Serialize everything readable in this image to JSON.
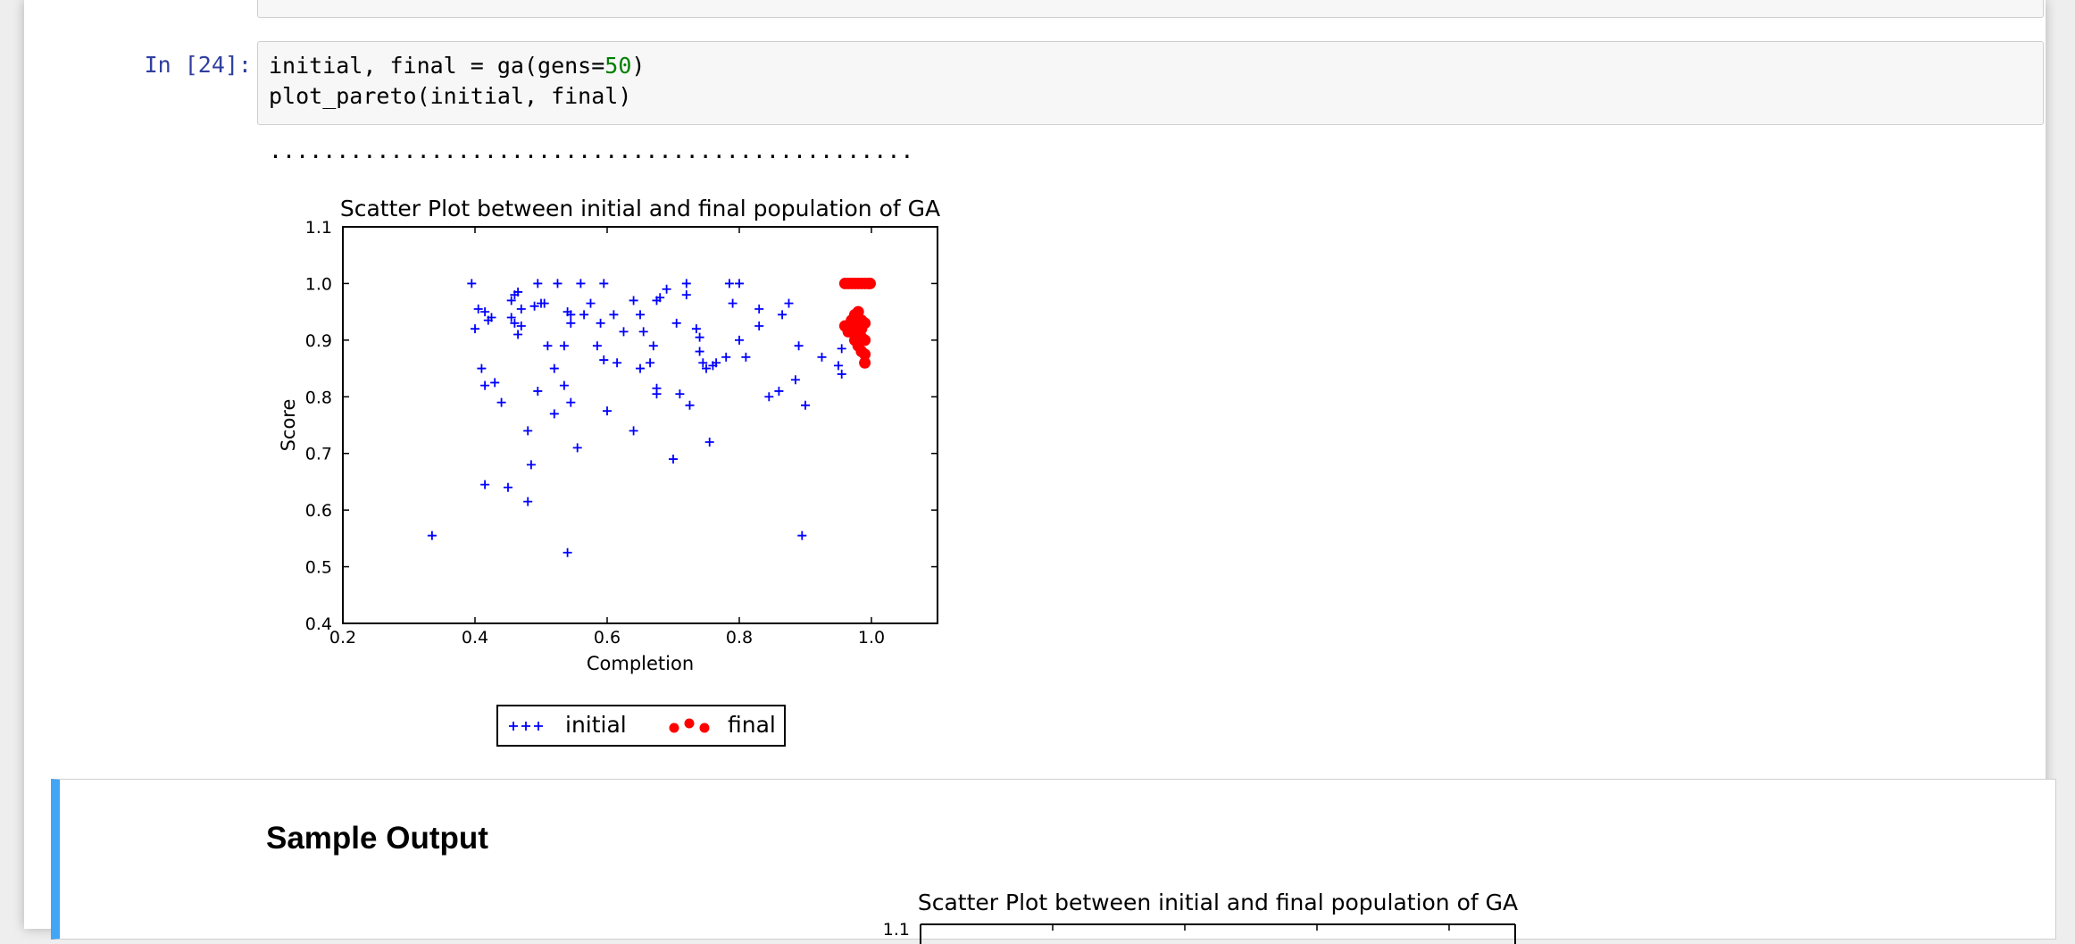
{
  "cell": {
    "prompt": "In [24]:",
    "code_line1_a": "initial, final = ga(gens=",
    "code_line1_num": "50",
    "code_line1_b": ")",
    "code_line2": "plot_pareto(initial, final)",
    "progress_output": "................................................"
  },
  "markdown": {
    "heading": "Sample Output"
  },
  "chart_data": [
    {
      "type": "scatter",
      "title": "Scatter Plot between initial and final population of GA",
      "xlabel": "Completion",
      "ylabel": "Score",
      "xlim": [
        0.2,
        1.1
      ],
      "ylim": [
        0.4,
        1.1
      ],
      "xticks": [
        "0.2",
        "0.4",
        "0.6",
        "0.8",
        "1.0"
      ],
      "yticks": [
        "0.4",
        "0.5",
        "0.6",
        "0.7",
        "0.8",
        "0.9",
        "1.0",
        "1.1"
      ],
      "grid": false,
      "legend_placement": "below",
      "series": [
        {
          "name": "initial",
          "marker": "plus",
          "color": "#0000ff",
          "points": [
            [
              0.395,
              1.0
            ],
            [
              0.4,
              0.92
            ],
            [
              0.405,
              0.955
            ],
            [
              0.415,
              0.95
            ],
            [
              0.42,
              0.935
            ],
            [
              0.425,
              0.94
            ],
            [
              0.41,
              0.85
            ],
            [
              0.415,
              0.82
            ],
            [
              0.43,
              0.825
            ],
            [
              0.44,
              0.79
            ],
            [
              0.415,
              0.645
            ],
            [
              0.45,
              0.64
            ],
            [
              0.455,
              0.97
            ],
            [
              0.46,
              0.98
            ],
            [
              0.465,
              0.985
            ],
            [
              0.455,
              0.94
            ],
            [
              0.46,
              0.93
            ],
            [
              0.465,
              0.91
            ],
            [
              0.47,
              0.925
            ],
            [
              0.47,
              0.955
            ],
            [
              0.48,
              0.74
            ],
            [
              0.485,
              0.68
            ],
            [
              0.48,
              0.615
            ],
            [
              0.49,
              0.96
            ],
            [
              0.495,
              1.0
            ],
            [
              0.495,
              0.81
            ],
            [
              0.5,
              0.965
            ],
            [
              0.505,
              0.965
            ],
            [
              0.51,
              0.89
            ],
            [
              0.52,
              0.85
            ],
            [
              0.52,
              0.77
            ],
            [
              0.525,
              1.0
            ],
            [
              0.535,
              0.89
            ],
            [
              0.535,
              0.82
            ],
            [
              0.54,
              0.95
            ],
            [
              0.545,
              0.945
            ],
            [
              0.545,
              0.93
            ],
            [
              0.545,
              0.79
            ],
            [
              0.555,
              0.71
            ],
            [
              0.56,
              1.0
            ],
            [
              0.565,
              0.945
            ],
            [
              0.575,
              0.965
            ],
            [
              0.585,
              0.89
            ],
            [
              0.59,
              0.93
            ],
            [
              0.595,
              1.0
            ],
            [
              0.595,
              0.865
            ],
            [
              0.6,
              0.775
            ],
            [
              0.61,
              0.945
            ],
            [
              0.615,
              0.86
            ],
            [
              0.625,
              0.915
            ],
            [
              0.64,
              0.97
            ],
            [
              0.64,
              0.74
            ],
            [
              0.65,
              0.945
            ],
            [
              0.65,
              0.85
            ],
            [
              0.655,
              0.915
            ],
            [
              0.665,
              0.86
            ],
            [
              0.67,
              0.89
            ],
            [
              0.675,
              0.815
            ],
            [
              0.675,
              0.805
            ],
            [
              0.675,
              0.97
            ],
            [
              0.68,
              0.975
            ],
            [
              0.69,
              0.99
            ],
            [
              0.7,
              0.69
            ],
            [
              0.705,
              0.93
            ],
            [
              0.71,
              0.805
            ],
            [
              0.72,
              1.0
            ],
            [
              0.72,
              0.98
            ],
            [
              0.725,
              0.785
            ],
            [
              0.735,
              0.92
            ],
            [
              0.74,
              0.905
            ],
            [
              0.74,
              0.88
            ],
            [
              0.745,
              0.86
            ],
            [
              0.75,
              0.85
            ],
            [
              0.755,
              0.72
            ],
            [
              0.76,
              0.855
            ],
            [
              0.765,
              0.86
            ],
            [
              0.78,
              0.87
            ],
            [
              0.785,
              1.0
            ],
            [
              0.79,
              0.965
            ],
            [
              0.8,
              1.0
            ],
            [
              0.8,
              0.9
            ],
            [
              0.81,
              0.87
            ],
            [
              0.83,
              0.955
            ],
            [
              0.83,
              0.925
            ],
            [
              0.845,
              0.8
            ],
            [
              0.86,
              0.81
            ],
            [
              0.865,
              0.945
            ],
            [
              0.875,
              0.965
            ],
            [
              0.885,
              0.83
            ],
            [
              0.89,
              0.89
            ],
            [
              0.895,
              0.555
            ],
            [
              0.9,
              0.785
            ],
            [
              0.925,
              0.87
            ],
            [
              0.95,
              0.855
            ],
            [
              0.955,
              0.885
            ],
            [
              0.955,
              0.84
            ],
            [
              0.335,
              0.555
            ],
            [
              0.54,
              0.525
            ]
          ]
        },
        {
          "name": "final",
          "marker": "circle",
          "color": "#ff0000",
          "points": [
            [
              0.96,
              1.0
            ],
            [
              0.965,
              1.0
            ],
            [
              0.97,
              1.0
            ],
            [
              0.975,
              1.0
            ],
            [
              0.98,
              1.0
            ],
            [
              0.985,
              1.0
            ],
            [
              0.99,
              1.0
            ],
            [
              0.995,
              1.0
            ],
            [
              0.998,
              1.0
            ],
            [
              0.96,
              0.925
            ],
            [
              0.965,
              0.915
            ],
            [
              0.97,
              0.92
            ],
            [
              0.97,
              0.935
            ],
            [
              0.975,
              0.945
            ],
            [
              0.975,
              0.9
            ],
            [
              0.98,
              0.93
            ],
            [
              0.98,
              0.91
            ],
            [
              0.98,
              0.89
            ],
            [
              0.985,
              0.935
            ],
            [
              0.985,
              0.92
            ],
            [
              0.985,
              0.905
            ],
            [
              0.985,
              0.88
            ],
            [
              0.99,
              0.93
            ],
            [
              0.99,
              0.9
            ],
            [
              0.99,
              0.875
            ],
            [
              0.99,
              0.86
            ],
            [
              0.98,
              0.95
            ],
            [
              0.975,
              0.925
            ]
          ]
        }
      ]
    },
    {
      "type": "scatter",
      "title": "Scatter Plot between initial and final population of GA",
      "yticks": [
        "1.1"
      ],
      "ylim": [
        0.4,
        1.1
      ]
    }
  ],
  "colors": {
    "prompt": "#303f9f",
    "number": "#008000",
    "accent": "#42a5f5"
  }
}
